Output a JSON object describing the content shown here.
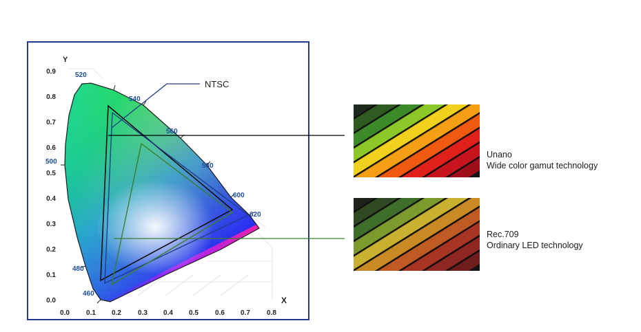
{
  "cie": {
    "y_axis_label": "Y",
    "x_axis_label": "X",
    "y_ticks": [
      "0.0",
      "0.1",
      "0.2",
      "0.3",
      "0.4",
      "0.5",
      "0.6",
      "0.7",
      "0.8",
      "0.9"
    ],
    "x_ticks": [
      "0.0",
      "0.1",
      "0.2",
      "0.3",
      "0.4",
      "0.5",
      "0.6",
      "0.7",
      "0.8"
    ],
    "wavelengths": [
      "520",
      "540",
      "560",
      "580",
      "600",
      "620",
      "500",
      "480",
      "460"
    ],
    "gamut_label": "NTSC",
    "colors": {
      "frame": "#1f3c88",
      "wavelength_text": "#1f4e9c",
      "unano_line": "#000000",
      "rec709_line": "#3a7d2c"
    }
  },
  "samples": [
    {
      "title": "Unano",
      "subtitle": "Wide color gamut technology"
    },
    {
      "title": "Rec.709",
      "subtitle": "Ordinary LED technology"
    }
  ]
}
